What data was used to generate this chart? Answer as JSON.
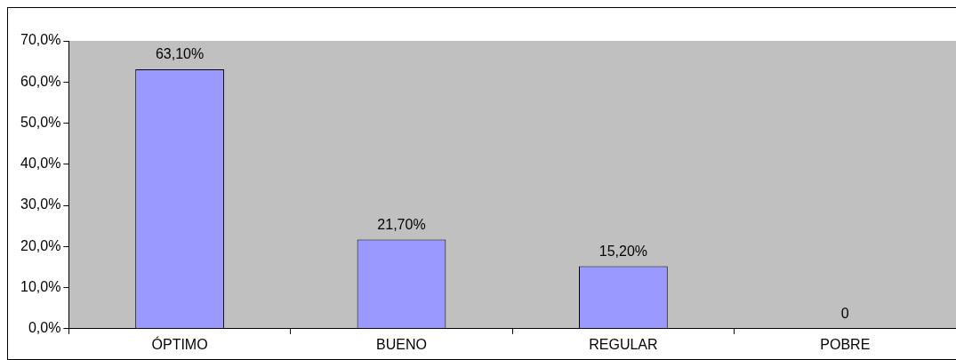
{
  "chart_data": {
    "type": "bar",
    "categories": [
      "ÓPTIMO",
      "BUENO",
      "REGULAR",
      "POBRE"
    ],
    "values": [
      63.1,
      21.7,
      15.2,
      0
    ],
    "value_labels": [
      "63,10%",
      "21,70%",
      "15,20%",
      "0"
    ],
    "color": "#9999ff",
    "ylim": [
      0,
      70
    ],
    "yticks": [
      {
        "value": 0,
        "label": "0,0%"
      },
      {
        "value": 10,
        "label": "10,0%"
      },
      {
        "value": 20,
        "label": "20,0%"
      },
      {
        "value": 30,
        "label": "30,0%"
      },
      {
        "value": 40,
        "label": "40,0%"
      },
      {
        "value": 50,
        "label": "50,0%"
      },
      {
        "value": 60,
        "label": "60,0%"
      },
      {
        "value": 70,
        "label": "70,0%"
      }
    ],
    "grid": false,
    "legend": false
  }
}
